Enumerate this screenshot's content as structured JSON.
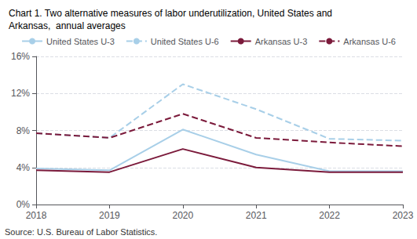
{
  "chart_data": {
    "type": "line",
    "title": "Chart 1. Two alternative measures of labor underutilization, United States and\nArkansas,  annual averages",
    "annotations": [
      "Source: U.S. Bureau of Labor Statistics."
    ],
    "x": [
      2018,
      2019,
      2020,
      2021,
      2022,
      2023
    ],
    "series": [
      {
        "name": "United States U-3",
        "color": "#a8cfe8",
        "line_style": "solid",
        "values": [
          3.9,
          3.7,
          8.1,
          5.4,
          3.6,
          3.6
        ]
      },
      {
        "name": "United States U-6",
        "color": "#a8cfe8",
        "line_style": "dashed",
        "values": [
          7.7,
          7.2,
          13.0,
          10.3,
          7.1,
          6.9
        ]
      },
      {
        "name": "Arkansas U-3",
        "color": "#7b1a3b",
        "line_style": "solid",
        "values": [
          3.7,
          3.5,
          6.0,
          4.0,
          3.5,
          3.5
        ]
      },
      {
        "name": "Arkansas U-6",
        "color": "#7b1a3b",
        "line_style": "dashed",
        "values": [
          7.7,
          7.2,
          9.8,
          7.2,
          6.7,
          6.3
        ]
      }
    ],
    "xlim": [
      2018,
      2023
    ],
    "xticks": [
      2018,
      2019,
      2020,
      2021,
      2022,
      2023
    ],
    "ylim": [
      0,
      16
    ],
    "yticks": [
      {
        "value": 0,
        "label": "0%"
      },
      {
        "value": 4,
        "label": "4%"
      },
      {
        "value": 8,
        "label": "8%"
      },
      {
        "value": 12,
        "label": "12%"
      },
      {
        "value": 16,
        "label": "16%"
      }
    ],
    "grid": true,
    "legend": "top"
  }
}
